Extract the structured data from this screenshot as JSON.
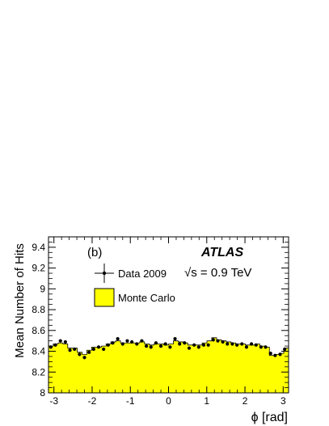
{
  "chart_data": {
    "type": "step-histogram-with-points",
    "panel_label": "(b)",
    "experiment": "ATLAS",
    "energy": "√s = 0.9 TeV",
    "xlabel": "ϕ [rad]",
    "ylabel": "Mean Number of Hits",
    "xlim": [
      -3.1416,
      3.1416
    ],
    "ylim": [
      8.0,
      9.5
    ],
    "x_ticks": [
      -3,
      -2,
      -1,
      0,
      1,
      2,
      3
    ],
    "x_tick_labels": [
      "-3",
      "-2",
      "-1",
      "0",
      "1",
      "2",
      "3"
    ],
    "y_ticks": [
      8.0,
      8.2,
      8.4,
      8.6,
      8.8,
      9.0,
      9.2,
      9.4
    ],
    "y_tick_labels": [
      "8",
      "8.2",
      "8.4",
      "8.6",
      "8.8",
      "9",
      "9.2",
      "9.4"
    ],
    "legend": [
      {
        "label": "Data 2009",
        "style": "marker-cross"
      },
      {
        "label": "Monte Carlo",
        "style": "yellow-box"
      }
    ],
    "series": [
      {
        "name": "Data 2009",
        "kind": "points",
        "x": [
          -3.08,
          -2.96,
          -2.83,
          -2.7,
          -2.58,
          -2.46,
          -2.33,
          -2.2,
          -2.08,
          -1.96,
          -1.83,
          -1.7,
          -1.58,
          -1.46,
          -1.33,
          -1.2,
          -1.08,
          -0.96,
          -0.83,
          -0.7,
          -0.58,
          -0.46,
          -0.33,
          -0.2,
          -0.08,
          0.04,
          0.17,
          0.29,
          0.42,
          0.54,
          0.67,
          0.79,
          0.92,
          1.04,
          1.17,
          1.29,
          1.42,
          1.54,
          1.67,
          1.79,
          1.92,
          2.04,
          2.17,
          2.29,
          2.42,
          2.54,
          2.67,
          2.79,
          2.92,
          3.04
        ],
        "y": [
          8.44,
          8.46,
          8.5,
          8.49,
          8.41,
          8.42,
          8.37,
          8.34,
          8.39,
          8.42,
          8.44,
          8.42,
          8.46,
          8.48,
          8.52,
          8.47,
          8.5,
          8.49,
          8.47,
          8.5,
          8.45,
          8.44,
          8.48,
          8.45,
          8.47,
          8.44,
          8.52,
          8.47,
          8.48,
          8.43,
          8.46,
          8.44,
          8.46,
          8.46,
          8.51,
          8.5,
          8.49,
          8.47,
          8.47,
          8.46,
          8.47,
          8.44,
          8.47,
          8.46,
          8.44,
          8.44,
          8.38,
          8.36,
          8.37,
          8.42
        ]
      },
      {
        "name": "Monte Carlo",
        "kind": "filled-histogram",
        "x": [
          -3.08,
          -2.96,
          -2.83,
          -2.7,
          -2.58,
          -2.46,
          -2.33,
          -2.2,
          -2.08,
          -1.96,
          -1.83,
          -1.7,
          -1.58,
          -1.46,
          -1.33,
          -1.2,
          -1.08,
          -0.96,
          -0.83,
          -0.7,
          -0.58,
          -0.46,
          -0.33,
          -0.2,
          -0.08,
          0.04,
          0.17,
          0.29,
          0.42,
          0.54,
          0.67,
          0.79,
          0.92,
          1.04,
          1.17,
          1.29,
          1.42,
          1.54,
          1.67,
          1.79,
          1.92,
          2.04,
          2.17,
          2.29,
          2.42,
          2.54,
          2.67,
          2.79,
          2.92,
          3.04
        ],
        "y": [
          8.45,
          8.47,
          8.48,
          8.47,
          8.43,
          8.43,
          8.39,
          8.37,
          8.41,
          8.44,
          8.44,
          8.45,
          8.47,
          8.49,
          8.5,
          8.48,
          8.48,
          8.48,
          8.48,
          8.49,
          8.47,
          8.46,
          8.47,
          8.47,
          8.46,
          8.47,
          8.5,
          8.49,
          8.48,
          8.46,
          8.46,
          8.46,
          8.48,
          8.5,
          8.53,
          8.51,
          8.5,
          8.49,
          8.48,
          8.47,
          8.47,
          8.46,
          8.46,
          8.47,
          8.45,
          8.44,
          8.36,
          8.37,
          8.38,
          8.43
        ]
      }
    ]
  }
}
